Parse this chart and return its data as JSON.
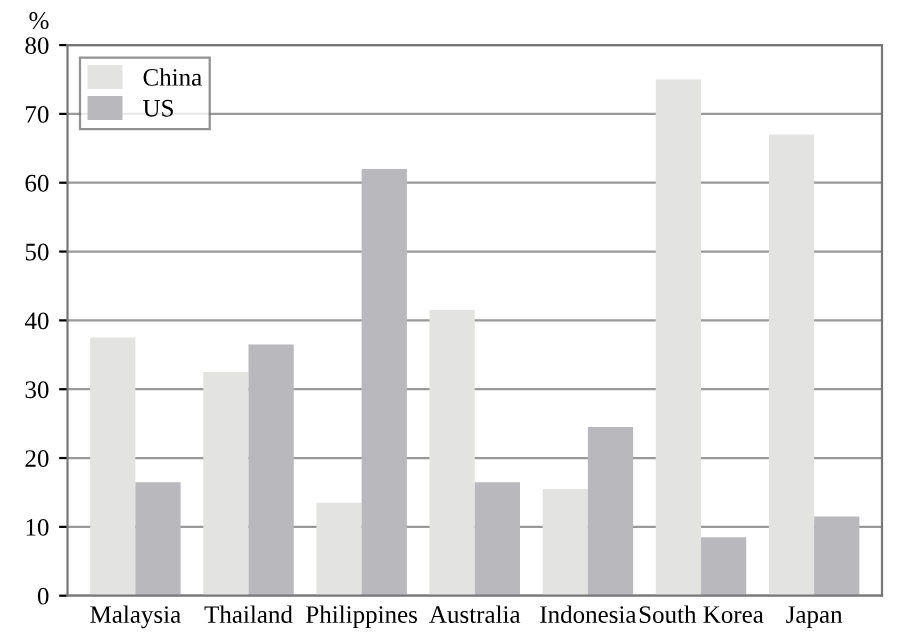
{
  "chart_data": {
    "type": "bar",
    "ylabel": "%",
    "categories": [
      "Malaysia",
      "Thailand",
      "Philippines",
      "Australia",
      "Indonesia",
      "South Korea",
      "Japan"
    ],
    "series": [
      {
        "name": "China",
        "color": "#e3e4e2",
        "values": [
          37.5,
          32.5,
          13.5,
          41.5,
          15.5,
          75,
          67
        ]
      },
      {
        "name": "US",
        "color": "#b8b8bd",
        "values": [
          16.5,
          36.5,
          62,
          16.5,
          24.5,
          8.5,
          11.5
        ]
      }
    ],
    "ylim": [
      0,
      80
    ],
    "yticks": [
      0,
      10,
      20,
      30,
      40,
      50,
      60,
      70,
      80
    ],
    "grid": "y",
    "legend": "top left"
  }
}
